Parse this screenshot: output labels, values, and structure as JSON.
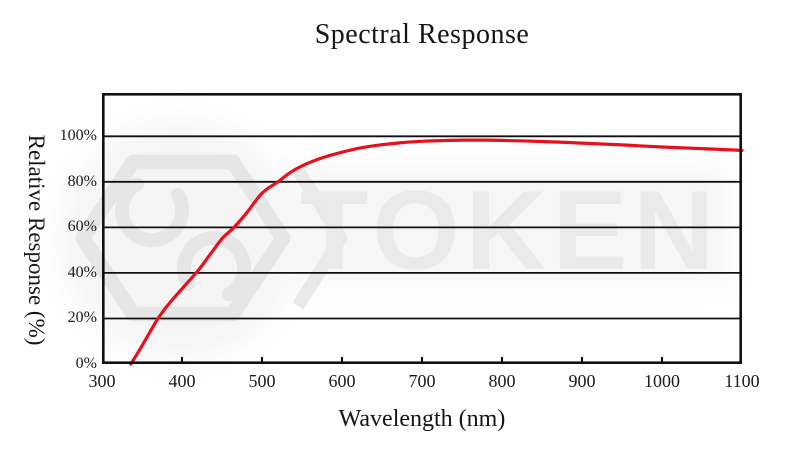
{
  "watermark": {
    "text": "TOKEN",
    "text_color": "#eaeaea",
    "logo_color": "#e6e6e6"
  },
  "chart_data": {
    "type": "line",
    "title": "Spectral Response",
    "xlabel": "Wavelength (nm)",
    "ylabel": "Relative Response (%)",
    "xlim": [
      300,
      1100
    ],
    "ylim": [
      0,
      119
    ],
    "x_ticks": [
      300,
      400,
      500,
      600,
      700,
      800,
      900,
      1000,
      1100
    ],
    "x_tick_labels": [
      "300",
      "400",
      "500",
      "600",
      "700",
      "800",
      "900",
      "1000",
      "1100"
    ],
    "y_ticks": [
      0,
      20,
      40,
      60,
      80,
      100
    ],
    "y_tick_labels": [
      "0%",
      "20%",
      "40%",
      "60%",
      "80%",
      "100%"
    ],
    "grid": "horizontal",
    "legend": "none",
    "axis_color": "#111111",
    "series": [
      {
        "name": "relative-response",
        "color": "#e8101a",
        "points": [
          [
            336,
            0
          ],
          [
            345,
            5
          ],
          [
            360,
            14
          ],
          [
            370,
            20
          ],
          [
            385,
            27
          ],
          [
            400,
            33
          ],
          [
            420,
            41
          ],
          [
            435,
            48
          ],
          [
            450,
            55
          ],
          [
            465,
            60
          ],
          [
            480,
            66
          ],
          [
            500,
            75
          ],
          [
            520,
            80
          ],
          [
            535,
            84
          ],
          [
            550,
            87
          ],
          [
            575,
            90.5
          ],
          [
            600,
            93
          ],
          [
            625,
            95
          ],
          [
            650,
            96.3
          ],
          [
            675,
            97.2
          ],
          [
            700,
            97.8
          ],
          [
            725,
            98.1
          ],
          [
            750,
            98.3
          ],
          [
            775,
            98.3
          ],
          [
            800,
            98.2
          ],
          [
            850,
            97.7
          ],
          [
            900,
            97
          ],
          [
            950,
            96.2
          ],
          [
            1000,
            95.3
          ],
          [
            1050,
            94.6
          ],
          [
            1100,
            93.8
          ]
        ]
      }
    ]
  }
}
